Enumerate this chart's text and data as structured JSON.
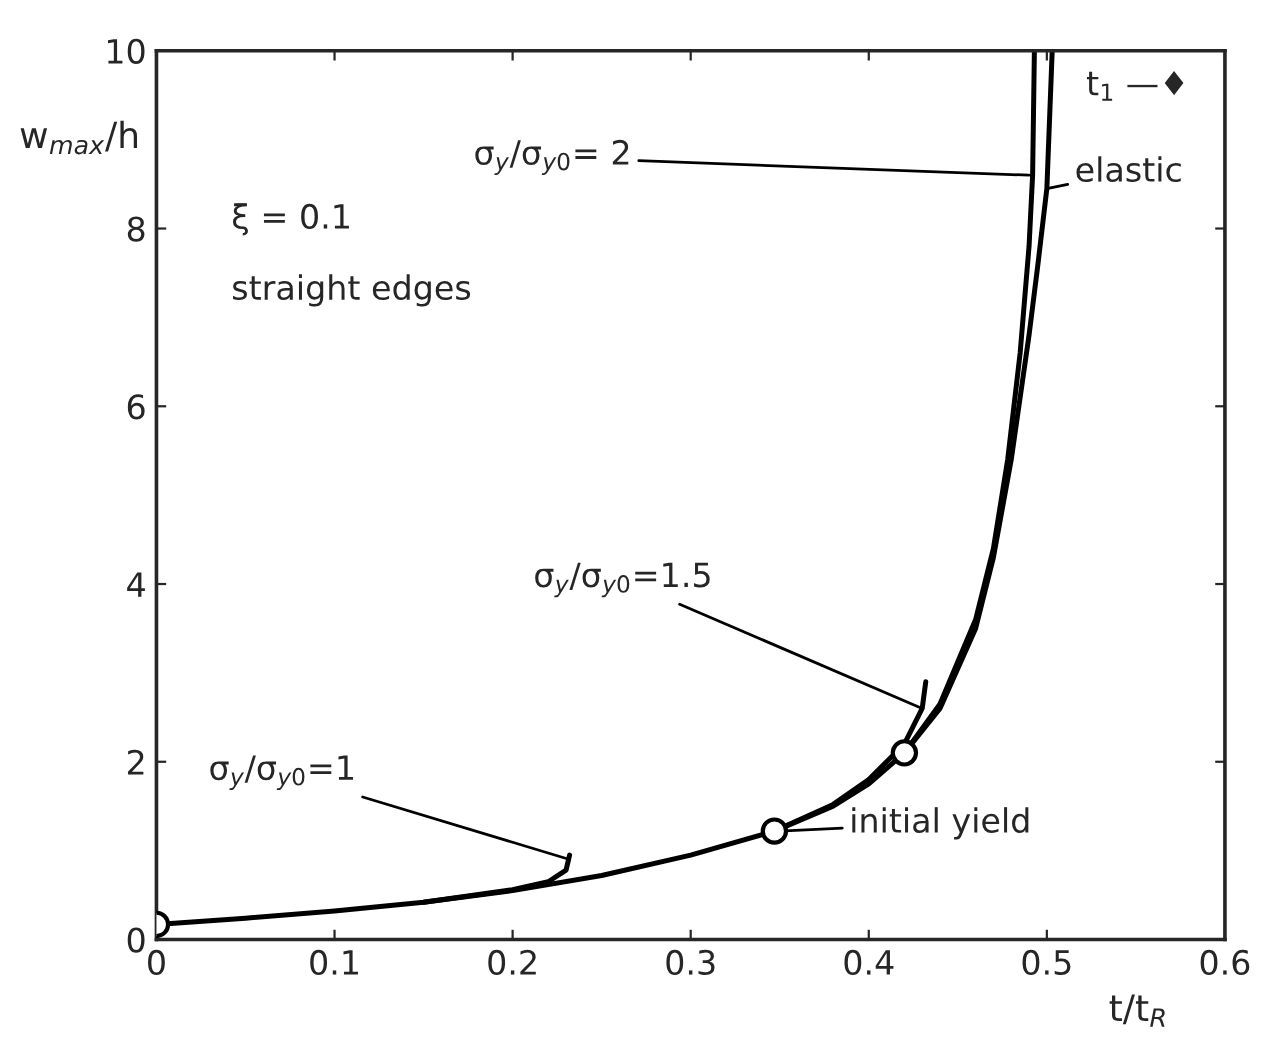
{
  "chart_data": {
    "type": "line",
    "xlabel": "t/t$_{R}$",
    "ylabel": "w$_{max}$/h",
    "xlim": [
      0,
      0.6
    ],
    "ylim": [
      0,
      10
    ],
    "xticks": [
      0,
      0.1,
      0.2,
      0.3,
      0.4,
      0.5,
      0.6
    ],
    "yticks": [
      0,
      2,
      4,
      6,
      8,
      10
    ],
    "marker": "none",
    "line_style": "solid",
    "grid": false,
    "legend": false,
    "series": [
      {
        "color": "#000000",
        "x": [
          0,
          0.05,
          0.1,
          0.15,
          0.2,
          0.25,
          0.3,
          0.347,
          0.38,
          0.4,
          0.42,
          0.44,
          0.46,
          0.47,
          0.48,
          0.49,
          0.495,
          0.5,
          0.503
        ],
        "values": [
          0.17,
          0.24,
          0.32,
          0.42,
          0.55,
          0.72,
          0.95,
          1.22,
          1.5,
          1.75,
          2.1,
          2.6,
          3.5,
          4.3,
          5.4,
          6.8,
          7.6,
          8.45,
          10
        ]
      },
      {
        "color": "#000000",
        "x": [
          0.15,
          0.2,
          0.22,
          0.23,
          0.232
        ],
        "values": [
          0.42,
          0.56,
          0.65,
          0.78,
          0.95
        ]
      },
      {
        "color": "#000000",
        "x": [
          0.347,
          0.38,
          0.4,
          0.42,
          0.43,
          0.432
        ],
        "values": [
          1.22,
          1.52,
          1.8,
          2.2,
          2.6,
          2.9
        ]
      },
      {
        "color": "#000000",
        "x": [
          0.42,
          0.44,
          0.46,
          0.47,
          0.478,
          0.485,
          0.49,
          0.492,
          0.493
        ],
        "values": [
          2.1,
          2.65,
          3.6,
          4.4,
          5.4,
          6.6,
          7.8,
          8.6,
          10
        ]
      },
      {
        "type": "scatter",
        "marker": "circle",
        "color": "#000000",
        "x": [
          0,
          0.347,
          0.42
        ],
        "values": [
          0.17,
          1.22,
          2.1
        ]
      }
    ],
    "annotations": [
      {
        "text": "σ$_{y}$/σ$_{y0}$= 2",
        "x": 0.49,
        "y": 8.6
      },
      {
        "text": "elastic",
        "x": 0.5,
        "y": 8.45
      },
      {
        "text": "σ$_{y}$/σ$_{y0}$=1.5",
        "x": 0.43,
        "y": 2.6
      },
      {
        "text": "σ$_{y}$/σ$_{y0}$=1",
        "x": 0.232,
        "y": 0.9
      },
      {
        "text": "initial yield",
        "x": 0.35,
        "y": 1.22
      },
      "ξ̄ = 0.1",
      "straight edges",
      "t$_{1}$ —♦"
    ]
  }
}
